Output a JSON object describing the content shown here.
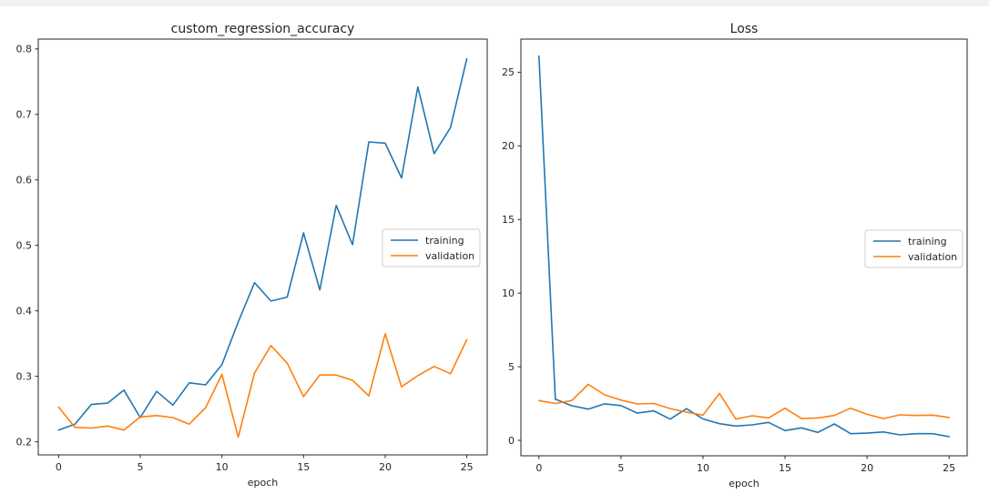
{
  "page": {
    "background": "#ffffff",
    "top_strip_color": "#f1f1f2"
  },
  "colors": {
    "training": "#1f77b4",
    "validation": "#ff7f0e",
    "spine": "#262626",
    "text": "#262626",
    "legend_border": "#cccccc",
    "legend_background": "#ffffff"
  },
  "chart_data": [
    {
      "type": "line",
      "title": "custom_regression_accuracy",
      "xlabel": "epoch",
      "ylabel": "",
      "grid": false,
      "legend_position": "center-right",
      "xlim": [
        -1.25,
        26.25
      ],
      "ylim": [
        0.18,
        0.815
      ],
      "xticks": [
        0,
        5,
        10,
        15,
        20,
        25
      ],
      "xtick_labels": [
        "0",
        "5",
        "10",
        "15",
        "20",
        "25"
      ],
      "yticks": [
        0.2,
        0.3,
        0.4,
        0.5,
        0.6,
        0.7,
        0.8
      ],
      "ytick_labels": [
        "0.2",
        "0.3",
        "0.4",
        "0.5",
        "0.6",
        "0.7",
        "0.8"
      ],
      "x": [
        0,
        1,
        2,
        3,
        4,
        5,
        6,
        7,
        8,
        9,
        10,
        11,
        12,
        13,
        14,
        15,
        16,
        17,
        18,
        19,
        20,
        21,
        22,
        23,
        24,
        25
      ],
      "series": [
        {
          "name": "training",
          "color": "#1f77b4",
          "values": [
            0.218,
            0.227,
            0.257,
            0.259,
            0.279,
            0.237,
            0.277,
            0.256,
            0.29,
            0.287,
            0.318,
            0.383,
            0.443,
            0.415,
            0.421,
            0.519,
            0.432,
            0.561,
            0.501,
            0.658,
            0.656,
            0.603,
            0.742,
            0.64,
            0.68,
            0.785
          ]
        },
        {
          "name": "validation",
          "color": "#ff7f0e",
          "values": [
            0.253,
            0.222,
            0.221,
            0.224,
            0.218,
            0.238,
            0.24,
            0.237,
            0.227,
            0.252,
            0.303,
            0.207,
            0.305,
            0.347,
            0.32,
            0.269,
            0.302,
            0.302,
            0.294,
            0.27,
            0.365,
            0.284,
            0.301,
            0.315,
            0.304,
            0.356
          ]
        }
      ]
    },
    {
      "type": "line",
      "title": "Loss",
      "xlabel": "epoch",
      "ylabel": "",
      "grid": false,
      "legend_position": "center-right",
      "xlim": [
        -1.1,
        26.1
      ],
      "ylim": [
        -1.05,
        27.25
      ],
      "xticks": [
        0,
        5,
        10,
        15,
        20,
        25
      ],
      "xtick_labels": [
        "0",
        "5",
        "10",
        "15",
        "20",
        "25"
      ],
      "yticks": [
        0,
        5,
        10,
        15,
        20,
        25
      ],
      "ytick_labels": [
        "0",
        "5",
        "10",
        "15",
        "20",
        "25"
      ],
      "x": [
        0,
        1,
        2,
        3,
        4,
        5,
        6,
        7,
        8,
        9,
        10,
        11,
        12,
        13,
        14,
        15,
        16,
        17,
        18,
        19,
        20,
        21,
        22,
        23,
        24,
        25
      ],
      "series": [
        {
          "name": "training",
          "color": "#1f77b4",
          "values": [
            26.1,
            2.8,
            2.35,
            2.12,
            2.48,
            2.36,
            1.85,
            2.0,
            1.44,
            2.15,
            1.45,
            1.13,
            0.97,
            1.05,
            1.22,
            0.66,
            0.85,
            0.54,
            1.11,
            0.45,
            0.49,
            0.57,
            0.37,
            0.45,
            0.45,
            0.25
          ]
        },
        {
          "name": "validation",
          "color": "#ff7f0e",
          "values": [
            2.7,
            2.5,
            2.7,
            3.8,
            3.09,
            2.73,
            2.47,
            2.5,
            2.16,
            1.91,
            1.71,
            3.19,
            1.44,
            1.67,
            1.52,
            2.18,
            1.48,
            1.52,
            1.69,
            2.18,
            1.77,
            1.48,
            1.73,
            1.69,
            1.71,
            1.55
          ]
        }
      ]
    }
  ]
}
